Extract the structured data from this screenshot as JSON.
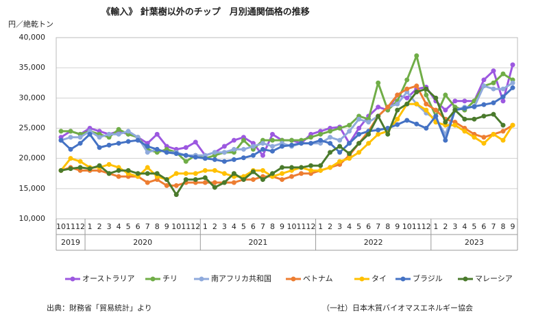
{
  "chart_data": {
    "type": "line",
    "title": "《輸入》 針葉樹以外のチップ　月別通関価格の推移",
    "y_axis_label": "円／絶乾トン",
    "source": "出典：財務省「貿易統計」より",
    "credit": "（一社）日本木質バイオマスエネルギー協会",
    "categories": [
      "10",
      "11",
      "12",
      "1",
      "2",
      "3",
      "4",
      "5",
      "6",
      "7",
      "8",
      "9",
      "10",
      "11",
      "12",
      "1",
      "2",
      "3",
      "4",
      "5",
      "6",
      "7",
      "8",
      "9",
      "10",
      "11",
      "12",
      "1",
      "2",
      "3",
      "4",
      "5",
      "6",
      "7",
      "8",
      "9",
      "10",
      "11",
      "12",
      "1",
      "2",
      "3",
      "4",
      "5",
      "6",
      "7",
      "8",
      "9"
    ],
    "years": [
      "2019",
      "2020",
      "2021",
      "2022",
      "2023"
    ],
    "ylim": [
      10000,
      40000
    ],
    "yticks": [
      {
        "value": 10000,
        "label": "10,000"
      },
      {
        "value": 15000,
        "label": "15,000"
      },
      {
        "value": 20000,
        "label": "20,000"
      },
      {
        "value": 25000,
        "label": "25,000"
      },
      {
        "value": 30000,
        "label": "30,000"
      },
      {
        "value": 35000,
        "label": "35,000"
      },
      {
        "value": 40000,
        "label": "40,000"
      }
    ],
    "grid": true,
    "legend": "bottom",
    "series": [
      {
        "name": "オーストラリア",
        "color": "#9c58e0",
        "values": [
          23500,
          24500,
          24000,
          25000,
          24500,
          24000,
          24500,
          24000,
          23500,
          22500,
          24000,
          22000,
          21500,
          21800,
          22700,
          20500,
          21000,
          22000,
          23000,
          23500,
          22500,
          20500,
          24000,
          23000,
          23000,
          22500,
          24000,
          24500,
          25000,
          25200,
          22500,
          25000,
          27000,
          28500,
          28000,
          30500,
          30000,
          31500,
          31800,
          29500,
          28000,
          29500,
          29500,
          29500,
          33000,
          34500,
          29500,
          35500
        ]
      },
      {
        "name": "チリ",
        "color": "#70ad47",
        "values": [
          24500,
          24500,
          24000,
          24500,
          24000,
          23500,
          24800,
          24000,
          23500,
          21500,
          21000,
          21500,
          21000,
          19500,
          20500,
          20000,
          20500,
          21000,
          21000,
          23000,
          21500,
          23000,
          23000,
          23000,
          23000,
          23000,
          23500,
          24000,
          24500,
          25000,
          25500,
          27000,
          26500,
          32500,
          28000,
          29500,
          33000,
          37000,
          30500,
          27000,
          30500,
          28500,
          28000,
          29500,
          32000,
          32500,
          34000,
          33000
        ]
      },
      {
        "name": "南アフリカ共和国",
        "color": "#8faadc",
        "values": [
          23000,
          23500,
          23500,
          24500,
          23500,
          24000,
          24000,
          24500,
          23500,
          21000,
          21500,
          21000,
          21000,
          20500,
          20500,
          20500,
          21000,
          21000,
          21500,
          21500,
          22000,
          22500,
          22000,
          22500,
          22000,
          22500,
          22500,
          22500,
          23500,
          23000,
          24500,
          26500,
          26000,
          27000,
          28500,
          29000,
          31000,
          29000,
          27500,
          26500,
          24000,
          28000,
          28500,
          28500,
          32000,
          31500,
          31500,
          32500
        ]
      },
      {
        "name": "ベトナム",
        "color": "#ed7d31",
        "values": [
          18000,
          18500,
          18000,
          18000,
          18000,
          17500,
          17000,
          17000,
          17000,
          16000,
          16500,
          15500,
          15500,
          16000,
          16000,
          16000,
          16000,
          16000,
          16000,
          16500,
          16500,
          17000,
          17000,
          16500,
          17000,
          17500,
          17500,
          18000,
          18500,
          19000,
          20500,
          22500,
          24500,
          27000,
          28500,
          30500,
          31500,
          32000,
          29000,
          28000,
          26500,
          26000,
          25000,
          24000,
          23500,
          24000,
          24500,
          25500
        ]
      },
      {
        "name": "タイ",
        "color": "#ffc000",
        "values": [
          18000,
          20000,
          19500,
          18500,
          18500,
          19000,
          18500,
          17500,
          17000,
          18500,
          17000,
          16500,
          17500,
          17500,
          17500,
          18000,
          18000,
          17500,
          17000,
          17000,
          18000,
          18000,
          17000,
          17500,
          18000,
          18500,
          18000,
          18000,
          18500,
          19500,
          20000,
          21000,
          22500,
          24000,
          24500,
          26500,
          29000,
          29000,
          28000,
          26000,
          25500,
          25500,
          24500,
          23500,
          22500,
          24000,
          23000,
          25500
        ]
      },
      {
        "name": "ブラジル",
        "color": "#4472c4",
        "values": [
          23000,
          21500,
          22500,
          24000,
          21800,
          22200,
          22500,
          22800,
          23000,
          22000,
          21500,
          21000,
          20800,
          20500,
          20200,
          20000,
          19800,
          19500,
          19800,
          20100,
          20500,
          21500,
          21200,
          22000,
          22200,
          22500,
          22500,
          23000,
          22500,
          21000,
          22500,
          24000,
          24500,
          24700,
          25000,
          25600,
          26300,
          25700,
          25000,
          27000,
          23000,
          28000,
          28300,
          28600,
          28900,
          29200,
          30200,
          31700
        ]
      },
      {
        "name": "マレーシア",
        "color": "#4a7a2c",
        "values": [
          18000,
          18300,
          18500,
          18300,
          18800,
          17500,
          18000,
          18000,
          17500,
          17500,
          17500,
          16500,
          14000,
          16500,
          16500,
          16800,
          15200,
          16000,
          17500,
          16500,
          17800,
          16500,
          17500,
          18500,
          18500,
          18500,
          18800,
          18800,
          21000,
          22000,
          20800,
          22500,
          24000,
          27000,
          24000,
          28000,
          29000,
          31000,
          31500,
          30000,
          26000,
          28000,
          26500,
          26500,
          27000,
          27300,
          25500,
          null
        ]
      }
    ]
  }
}
